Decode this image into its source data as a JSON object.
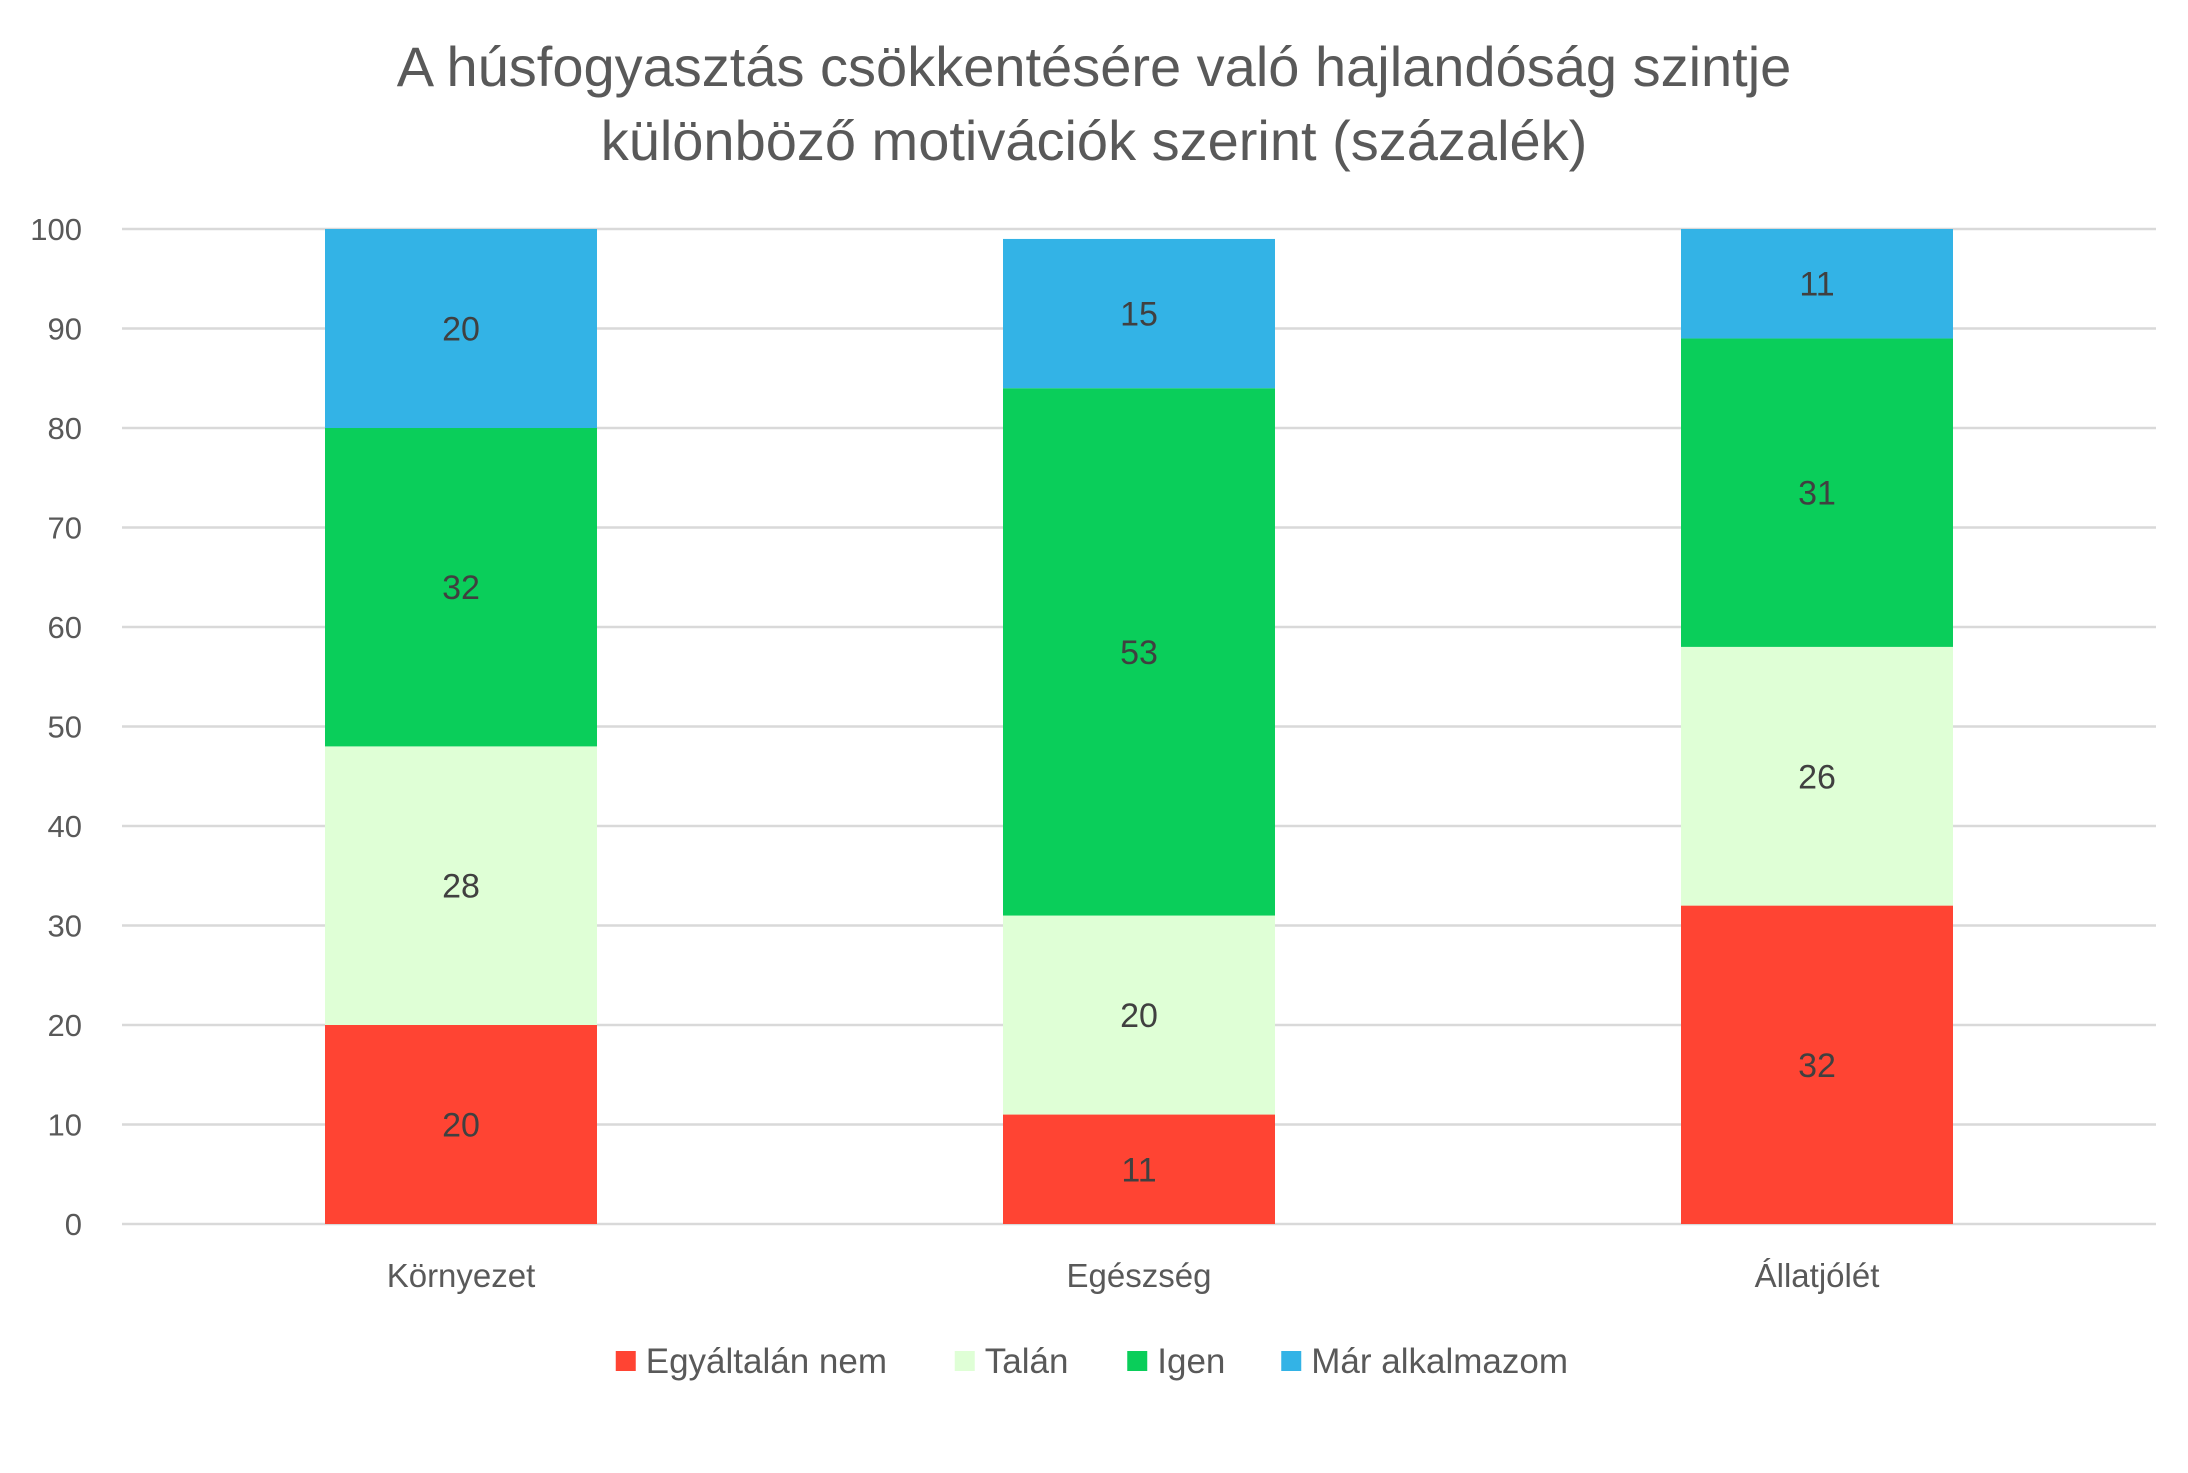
{
  "chart_data": {
    "type": "bar",
    "stacked": true,
    "title_lines": [
      "A húsfogyasztás csökkentésére való hajlandóság szintje",
      "különböző motivációk szerint (százalék)"
    ],
    "xlabel": "",
    "ylabel": "",
    "ylim": [
      0,
      100
    ],
    "yticks": [
      0,
      10,
      20,
      30,
      40,
      50,
      60,
      70,
      80,
      90,
      100
    ],
    "grid": true,
    "legend_position": "bottom",
    "categories": [
      "Környezet",
      "Egészség",
      "Állatjólét"
    ],
    "series": [
      {
        "name": "Egyáltalán nem",
        "color": "#FF4433",
        "values": [
          20,
          11,
          32
        ]
      },
      {
        "name": "Talán",
        "color": "#DFFFD6",
        "values": [
          28,
          20,
          26
        ]
      },
      {
        "name": "Igen",
        "color": "#0ACE5A",
        "values": [
          32,
          53,
          31
        ]
      },
      {
        "name": "Már alkalmazom",
        "color": "#33B3E6",
        "values": [
          20,
          15,
          11
        ]
      }
    ]
  }
}
